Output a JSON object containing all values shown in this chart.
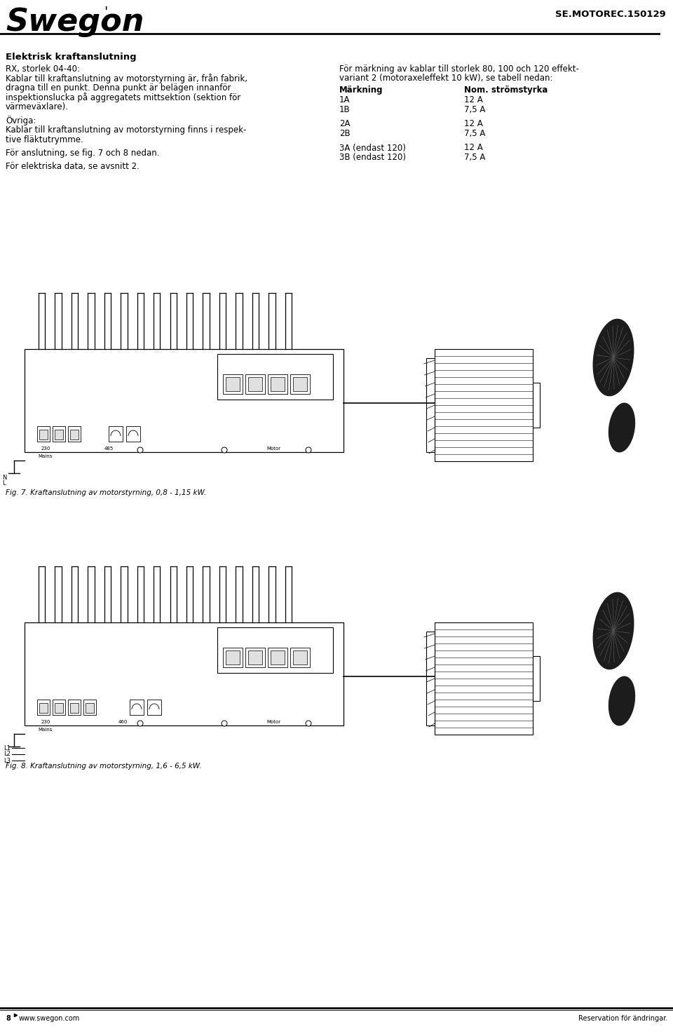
{
  "page_num": "8",
  "website": "www.swegon.com",
  "disclaimer": "Reservation för ändringar.",
  "doc_id": "SE.MOTOREC.150129",
  "brand": "Swegon",
  "section_title": "Elektrisk kraftanslutning",
  "left_col_lines": [
    "RX, storlek 04-40:",
    "Kablar till kraftanslutning av motorstyrning är, från fabrik,",
    "dragna till en punkt. Denna punkt är belägen innanför",
    "inspektionslucka på aggregatets mittsektion (sektion för",
    "värmeväxlare).",
    "",
    "Övriga:",
    "Kablar till kraftanslutning av motorstyrning finns i respek-",
    "tive fläktutrymme.",
    "",
    "För anslutning, se fig. 7 och 8 nedan.",
    "",
    "För elektriska data, se avsnitt 2."
  ],
  "right_col_intro": [
    "För märkning av kablar till storlek 80, 100 och 120 effekt-",
    "variant 2 (motoraxeleffekt 10 kW), se tabell nedan:"
  ],
  "table_header": [
    "Märkning",
    "Nom. strömstyrka"
  ],
  "table_rows": [
    [
      "1A",
      "12 A"
    ],
    [
      "1B",
      "7,5 A"
    ],
    [
      "",
      ""
    ],
    [
      "2A",
      "12 A"
    ],
    [
      "2B",
      "7,5 A"
    ],
    [
      "",
      ""
    ],
    [
      "3A (endast 120)",
      "12 A"
    ],
    [
      "3B (endast 120)",
      "7,5 A"
    ]
  ],
  "fig7_caption": "Fig. 7. Kraftanslutning av motorstyrning, 0,8 - 1,15 kW.",
  "fig8_caption": "Fig. 8. Kraftanslutning av motorstyrning, 1,6 - 6,5 kW.",
  "bg_color": "#ffffff",
  "text_color": "#000000",
  "font_size_body": 8.5,
  "font_size_small": 7.5,
  "font_size_title": 10,
  "font_size_brand": 28,
  "font_size_docid": 10
}
